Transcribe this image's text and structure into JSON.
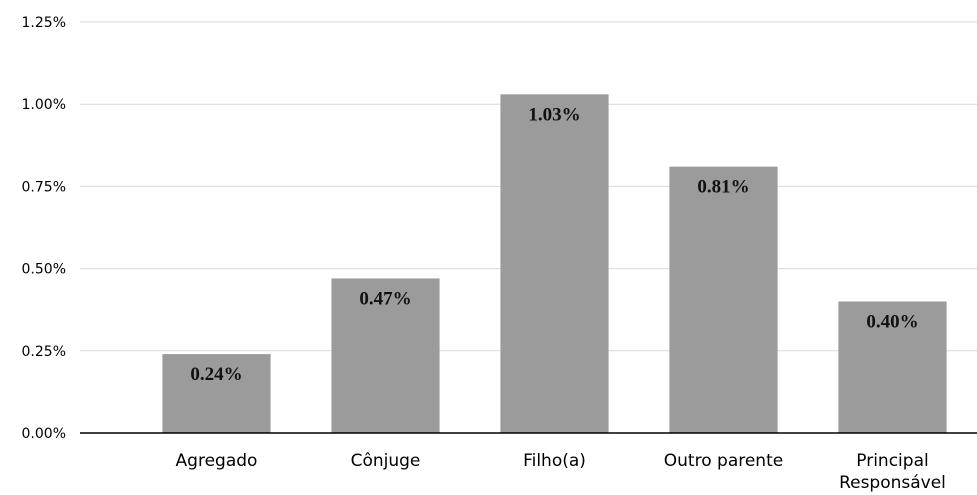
{
  "chart_data": {
    "type": "bar",
    "title": "",
    "xlabel": "",
    "ylabel": "",
    "categories": [
      "Agregado",
      "Cônjuge",
      "Filho(a)",
      "Outro parente",
      "Principal Responsável"
    ],
    "category_lines": [
      [
        "Agregado"
      ],
      [
        "Cônjuge"
      ],
      [
        "Filho(a)"
      ],
      [
        "Outro parente"
      ],
      [
        "Principal",
        "Responsável"
      ]
    ],
    "values": [
      0.24,
      0.47,
      1.03,
      0.81,
      0.4
    ],
    "data_labels": [
      "0.24%",
      "0.47%",
      "1.03%",
      "0.81%",
      "0.40%"
    ],
    "ylim": [
      0,
      1.25
    ],
    "yticks": [
      0,
      0.25,
      0.5,
      0.75,
      1.0,
      1.25
    ],
    "ytick_labels": [
      "0.00%",
      "0.25%",
      "0.50%",
      "0.75%",
      "1.00%",
      "1.25%"
    ],
    "grid": true,
    "legend": "none",
    "colors": {
      "bar": "#9b9b9b",
      "grid": "#d9d9d9",
      "axis": "#000000"
    }
  }
}
